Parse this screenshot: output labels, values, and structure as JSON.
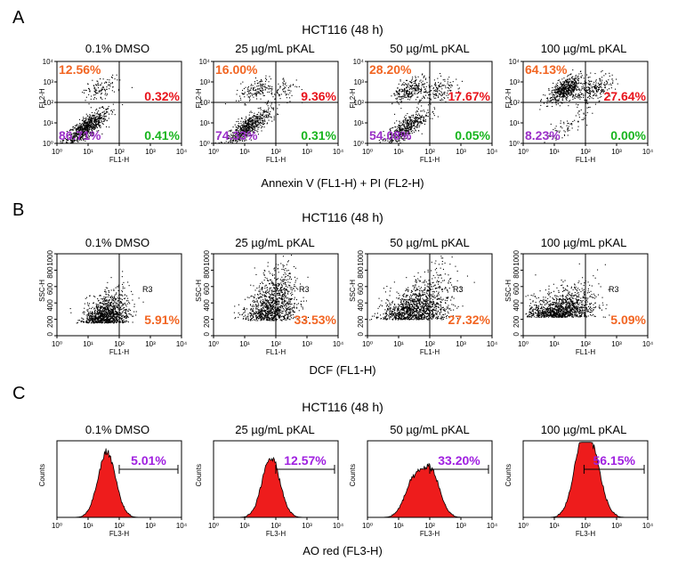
{
  "colors": {
    "orange": "#f26522",
    "red": "#e8141c",
    "purple": "#9b30c8",
    "green": "#19b51f",
    "hist_fill": "#ee1c1c",
    "magenta": "#a020e0"
  },
  "conditions": [
    "0.1% DMSO",
    "25 µg/mL pKAL",
    "50 µg/mL pKAL",
    "100 µg/mL pKAL"
  ],
  "tick_labels": [
    "10⁰",
    "10¹",
    "10²",
    "10³",
    "10⁴"
  ],
  "chart_data": [
    {
      "type": "scatter",
      "section": "A",
      "title": "HCT116 (48 h)",
      "xlabel": "FL1-H",
      "ylabel": "FL2-H",
      "figure_xlabel": "Annexin V (FL1-H) + PI (FL2-H)",
      "xscale": "log",
      "yscale": "log",
      "xlim": [
        1,
        10000
      ],
      "ylim": [
        1,
        10000
      ],
      "gate": {
        "x": 100,
        "y": 100
      },
      "panels": [
        {
          "condition": "0.1% DMSO",
          "upper_left": "12.56%",
          "upper_right": "0.32%",
          "lower_left": "86.71%",
          "lower_right": "0.41%"
        },
        {
          "condition": "25 µg/mL pKAL",
          "upper_left": "16.00%",
          "upper_right": "9.36%",
          "lower_left": "74.33%",
          "lower_right": "0.31%"
        },
        {
          "condition": "50 µg/mL pKAL",
          "upper_left": "28.20%",
          "upper_right": "17.67%",
          "lower_left": "54.08%",
          "lower_right": "0.05%"
        },
        {
          "condition": "100 µg/mL pKAL",
          "upper_left": "64.13%",
          "upper_right": "27.64%",
          "lower_left": "8.23%",
          "lower_right": "0.00%"
        }
      ]
    },
    {
      "type": "scatter",
      "section": "B",
      "title": "HCT116 (48 h)",
      "xlabel": "FL1-H",
      "ylabel": "SSC-H",
      "figure_xlabel": "DCF (FL1-H)",
      "xscale": "log",
      "yscale": "linear",
      "xlim": [
        1,
        10000
      ],
      "ylim": [
        0,
        1000
      ],
      "yticks": [
        "0",
        "200",
        "400",
        "600",
        "800",
        "1000"
      ],
      "gate_label": "R3",
      "gate": {
        "x": 100
      },
      "panels": [
        {
          "condition": "0.1% DMSO",
          "percent": "5.91%"
        },
        {
          "condition": "25 µg/mL pKAL",
          "percent": "33.53%"
        },
        {
          "condition": "50 µg/mL pKAL",
          "percent": "27.32%"
        },
        {
          "condition": "100 µg/mL pKAL",
          "percent": "5.09%"
        }
      ]
    },
    {
      "type": "histogram",
      "section": "C",
      "title": "HCT116 (48 h)",
      "xlabel": "FL3-H",
      "ylabel": "Counts",
      "figure_xlabel": "AO red (FL3-H)",
      "xscale": "log",
      "xlim": [
        1,
        10000
      ],
      "panels": [
        {
          "condition": "0.1% DMSO",
          "percent": "5.01%",
          "peaks": [
            {
              "x": 40,
              "h": 0.85
            }
          ],
          "gate": [
            100,
            10000
          ]
        },
        {
          "condition": "25 µg/mL pKAL",
          "percent": "12.57%",
          "peaks": [
            {
              "x": 70,
              "h": 0.78
            }
          ],
          "gate": [
            100,
            10000
          ]
        },
        {
          "condition": "50 µg/mL pKAL",
          "percent": "33.20%",
          "peaks": [
            {
              "x": 30,
              "h": 0.45
            },
            {
              "x": 110,
              "h": 0.58
            }
          ],
          "gate": [
            100,
            10000
          ]
        },
        {
          "condition": "100 µg/mL pKAL",
          "percent": "56.15%",
          "peaks": [
            {
              "x": 75,
              "h": 0.82
            },
            {
              "x": 190,
              "h": 0.6
            }
          ],
          "gate": [
            90,
            10000
          ]
        }
      ]
    }
  ]
}
